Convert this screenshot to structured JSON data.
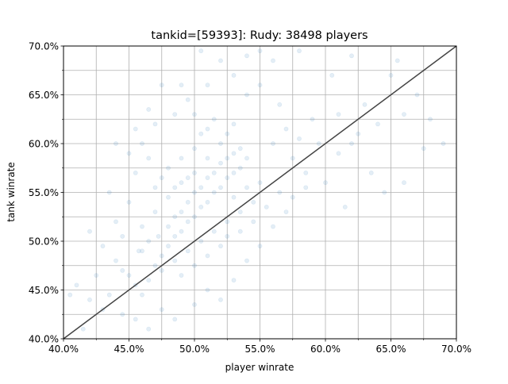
{
  "chart_data": {
    "type": "scatter",
    "title": "tankid=[59393]: Rudy: 38498 players",
    "xlabel": "player winrate",
    "ylabel": "tank winrate",
    "xlim": [
      0.4,
      0.7
    ],
    "ylim": [
      0.4,
      0.7
    ],
    "x_ticks": [
      {
        "value": 0.4,
        "label": "40.0%"
      },
      {
        "value": 0.45,
        "label": "45.0%"
      },
      {
        "value": 0.5,
        "label": "50.0%"
      },
      {
        "value": 0.55,
        "label": "55.0%"
      },
      {
        "value": 0.6,
        "label": "60.0%"
      },
      {
        "value": 0.65,
        "label": "65.0%"
      },
      {
        "value": 0.7,
        "label": "70.0%"
      }
    ],
    "y_ticks": [
      {
        "value": 0.4,
        "label": "40.0%"
      },
      {
        "value": 0.45,
        "label": "45.0%"
      },
      {
        "value": 0.5,
        "label": "50.0%"
      },
      {
        "value": 0.55,
        "label": "55.0%"
      },
      {
        "value": 0.6,
        "label": "60.0%"
      },
      {
        "value": 0.65,
        "label": "65.0%"
      },
      {
        "value": 0.7,
        "label": "70.0%"
      }
    ],
    "grid": true,
    "point_color": "#1f77b4",
    "point_opacity": 0.12,
    "reference_line": {
      "from": [
        0.4,
        0.4
      ],
      "to": [
        0.7,
        0.7
      ],
      "color": "#444444"
    },
    "points": [
      [
        0.4575,
        0.49
      ],
      [
        0.465,
        0.5
      ],
      [
        0.4725,
        0.505
      ],
      [
        0.48,
        0.515
      ],
      [
        0.485,
        0.525
      ],
      [
        0.49,
        0.53
      ],
      [
        0.495,
        0.54
      ],
      [
        0.5,
        0.55
      ],
      [
        0.505,
        0.555
      ],
      [
        0.51,
        0.565
      ],
      [
        0.515,
        0.57
      ],
      [
        0.52,
        0.58
      ],
      [
        0.525,
        0.585
      ],
      [
        0.53,
        0.59
      ],
      [
        0.535,
        0.595
      ],
      [
        0.47,
        0.475
      ],
      [
        0.475,
        0.485
      ],
      [
        0.48,
        0.495
      ],
      [
        0.485,
        0.505
      ],
      [
        0.49,
        0.51
      ],
      [
        0.495,
        0.52
      ],
      [
        0.5,
        0.525
      ],
      [
        0.505,
        0.535
      ],
      [
        0.51,
        0.54
      ],
      [
        0.515,
        0.55
      ],
      [
        0.52,
        0.555
      ],
      [
        0.525,
        0.565
      ],
      [
        0.53,
        0.57
      ],
      [
        0.535,
        0.575
      ],
      [
        0.54,
        0.585
      ],
      [
        0.46,
        0.515
      ],
      [
        0.47,
        0.53
      ],
      [
        0.48,
        0.545
      ],
      [
        0.49,
        0.56
      ],
      [
        0.5,
        0.57
      ],
      [
        0.51,
        0.585
      ],
      [
        0.52,
        0.6
      ],
      [
        0.525,
        0.61
      ],
      [
        0.53,
        0.62
      ],
      [
        0.515,
        0.625
      ],
      [
        0.465,
        0.46
      ],
      [
        0.475,
        0.47
      ],
      [
        0.485,
        0.48
      ],
      [
        0.495,
        0.49
      ],
      [
        0.505,
        0.5
      ],
      [
        0.515,
        0.51
      ],
      [
        0.525,
        0.52
      ],
      [
        0.535,
        0.53
      ],
      [
        0.545,
        0.54
      ],
      [
        0.55,
        0.56
      ],
      [
        0.44,
        0.48
      ],
      [
        0.445,
        0.47
      ],
      [
        0.45,
        0.465
      ],
      [
        0.455,
        0.455
      ],
      [
        0.46,
        0.445
      ],
      [
        0.435,
        0.445
      ],
      [
        0.43,
        0.43
      ],
      [
        0.425,
        0.465
      ],
      [
        0.42,
        0.44
      ],
      [
        0.445,
        0.425
      ],
      [
        0.56,
        0.6
      ],
      [
        0.57,
        0.615
      ],
      [
        0.58,
        0.605
      ],
      [
        0.59,
        0.625
      ],
      [
        0.565,
        0.64
      ],
      [
        0.575,
        0.585
      ],
      [
        0.585,
        0.57
      ],
      [
        0.595,
        0.6
      ],
      [
        0.61,
        0.63
      ],
      [
        0.625,
        0.61
      ],
      [
        0.54,
        0.65
      ],
      [
        0.55,
        0.66
      ],
      [
        0.53,
        0.67
      ],
      [
        0.56,
        0.685
      ],
      [
        0.58,
        0.695
      ],
      [
        0.5,
        0.63
      ],
      [
        0.495,
        0.645
      ],
      [
        0.485,
        0.63
      ],
      [
        0.47,
        0.62
      ],
      [
        0.46,
        0.6
      ],
      [
        0.475,
        0.66
      ],
      [
        0.49,
        0.66
      ],
      [
        0.51,
        0.66
      ],
      [
        0.52,
        0.685
      ],
      [
        0.54,
        0.69
      ],
      [
        0.45,
        0.54
      ],
      [
        0.44,
        0.52
      ],
      [
        0.435,
        0.55
      ],
      [
        0.455,
        0.57
      ],
      [
        0.465,
        0.585
      ],
      [
        0.455,
        0.42
      ],
      [
        0.465,
        0.41
      ],
      [
        0.475,
        0.43
      ],
      [
        0.485,
        0.42
      ],
      [
        0.5,
        0.435
      ],
      [
        0.51,
        0.45
      ],
      [
        0.52,
        0.44
      ],
      [
        0.53,
        0.46
      ],
      [
        0.54,
        0.48
      ],
      [
        0.55,
        0.495
      ],
      [
        0.56,
        0.515
      ],
      [
        0.57,
        0.53
      ],
      [
        0.565,
        0.55
      ],
      [
        0.575,
        0.545
      ],
      [
        0.585,
        0.555
      ],
      [
        0.6,
        0.56
      ],
      [
        0.61,
        0.59
      ],
      [
        0.62,
        0.6
      ],
      [
        0.63,
        0.64
      ],
      [
        0.64,
        0.62
      ],
      [
        0.65,
        0.67
      ],
      [
        0.66,
        0.63
      ],
      [
        0.68,
        0.625
      ],
      [
        0.69,
        0.6
      ],
      [
        0.675,
        0.595
      ],
      [
        0.635,
        0.57
      ],
      [
        0.645,
        0.55
      ],
      [
        0.615,
        0.535
      ],
      [
        0.66,
        0.56
      ],
      [
        0.67,
        0.65
      ],
      [
        0.415,
        0.41
      ],
      [
        0.41,
        0.455
      ],
      [
        0.43,
        0.495
      ],
      [
        0.42,
        0.51
      ],
      [
        0.445,
        0.505
      ],
      [
        0.405,
        0.445
      ],
      [
        0.45,
        0.59
      ],
      [
        0.44,
        0.6
      ],
      [
        0.465,
        0.635
      ],
      [
        0.455,
        0.615
      ],
      [
        0.505,
        0.695
      ],
      [
        0.55,
        0.695
      ],
      [
        0.605,
        0.67
      ],
      [
        0.62,
        0.69
      ],
      [
        0.655,
        0.685
      ],
      [
        0.535,
        0.51
      ],
      [
        0.545,
        0.52
      ],
      [
        0.555,
        0.535
      ],
      [
        0.54,
        0.555
      ],
      [
        0.53,
        0.545
      ],
      [
        0.48,
        0.575
      ],
      [
        0.49,
        0.585
      ],
      [
        0.5,
        0.595
      ],
      [
        0.505,
        0.61
      ],
      [
        0.51,
        0.615
      ],
      [
        0.49,
        0.465
      ],
      [
        0.5,
        0.475
      ],
      [
        0.51,
        0.485
      ],
      [
        0.52,
        0.495
      ],
      [
        0.525,
        0.505
      ],
      [
        0.46,
        0.49
      ],
      [
        0.47,
        0.555
      ],
      [
        0.475,
        0.565
      ],
      [
        0.485,
        0.555
      ],
      [
        0.495,
        0.565
      ]
    ]
  }
}
